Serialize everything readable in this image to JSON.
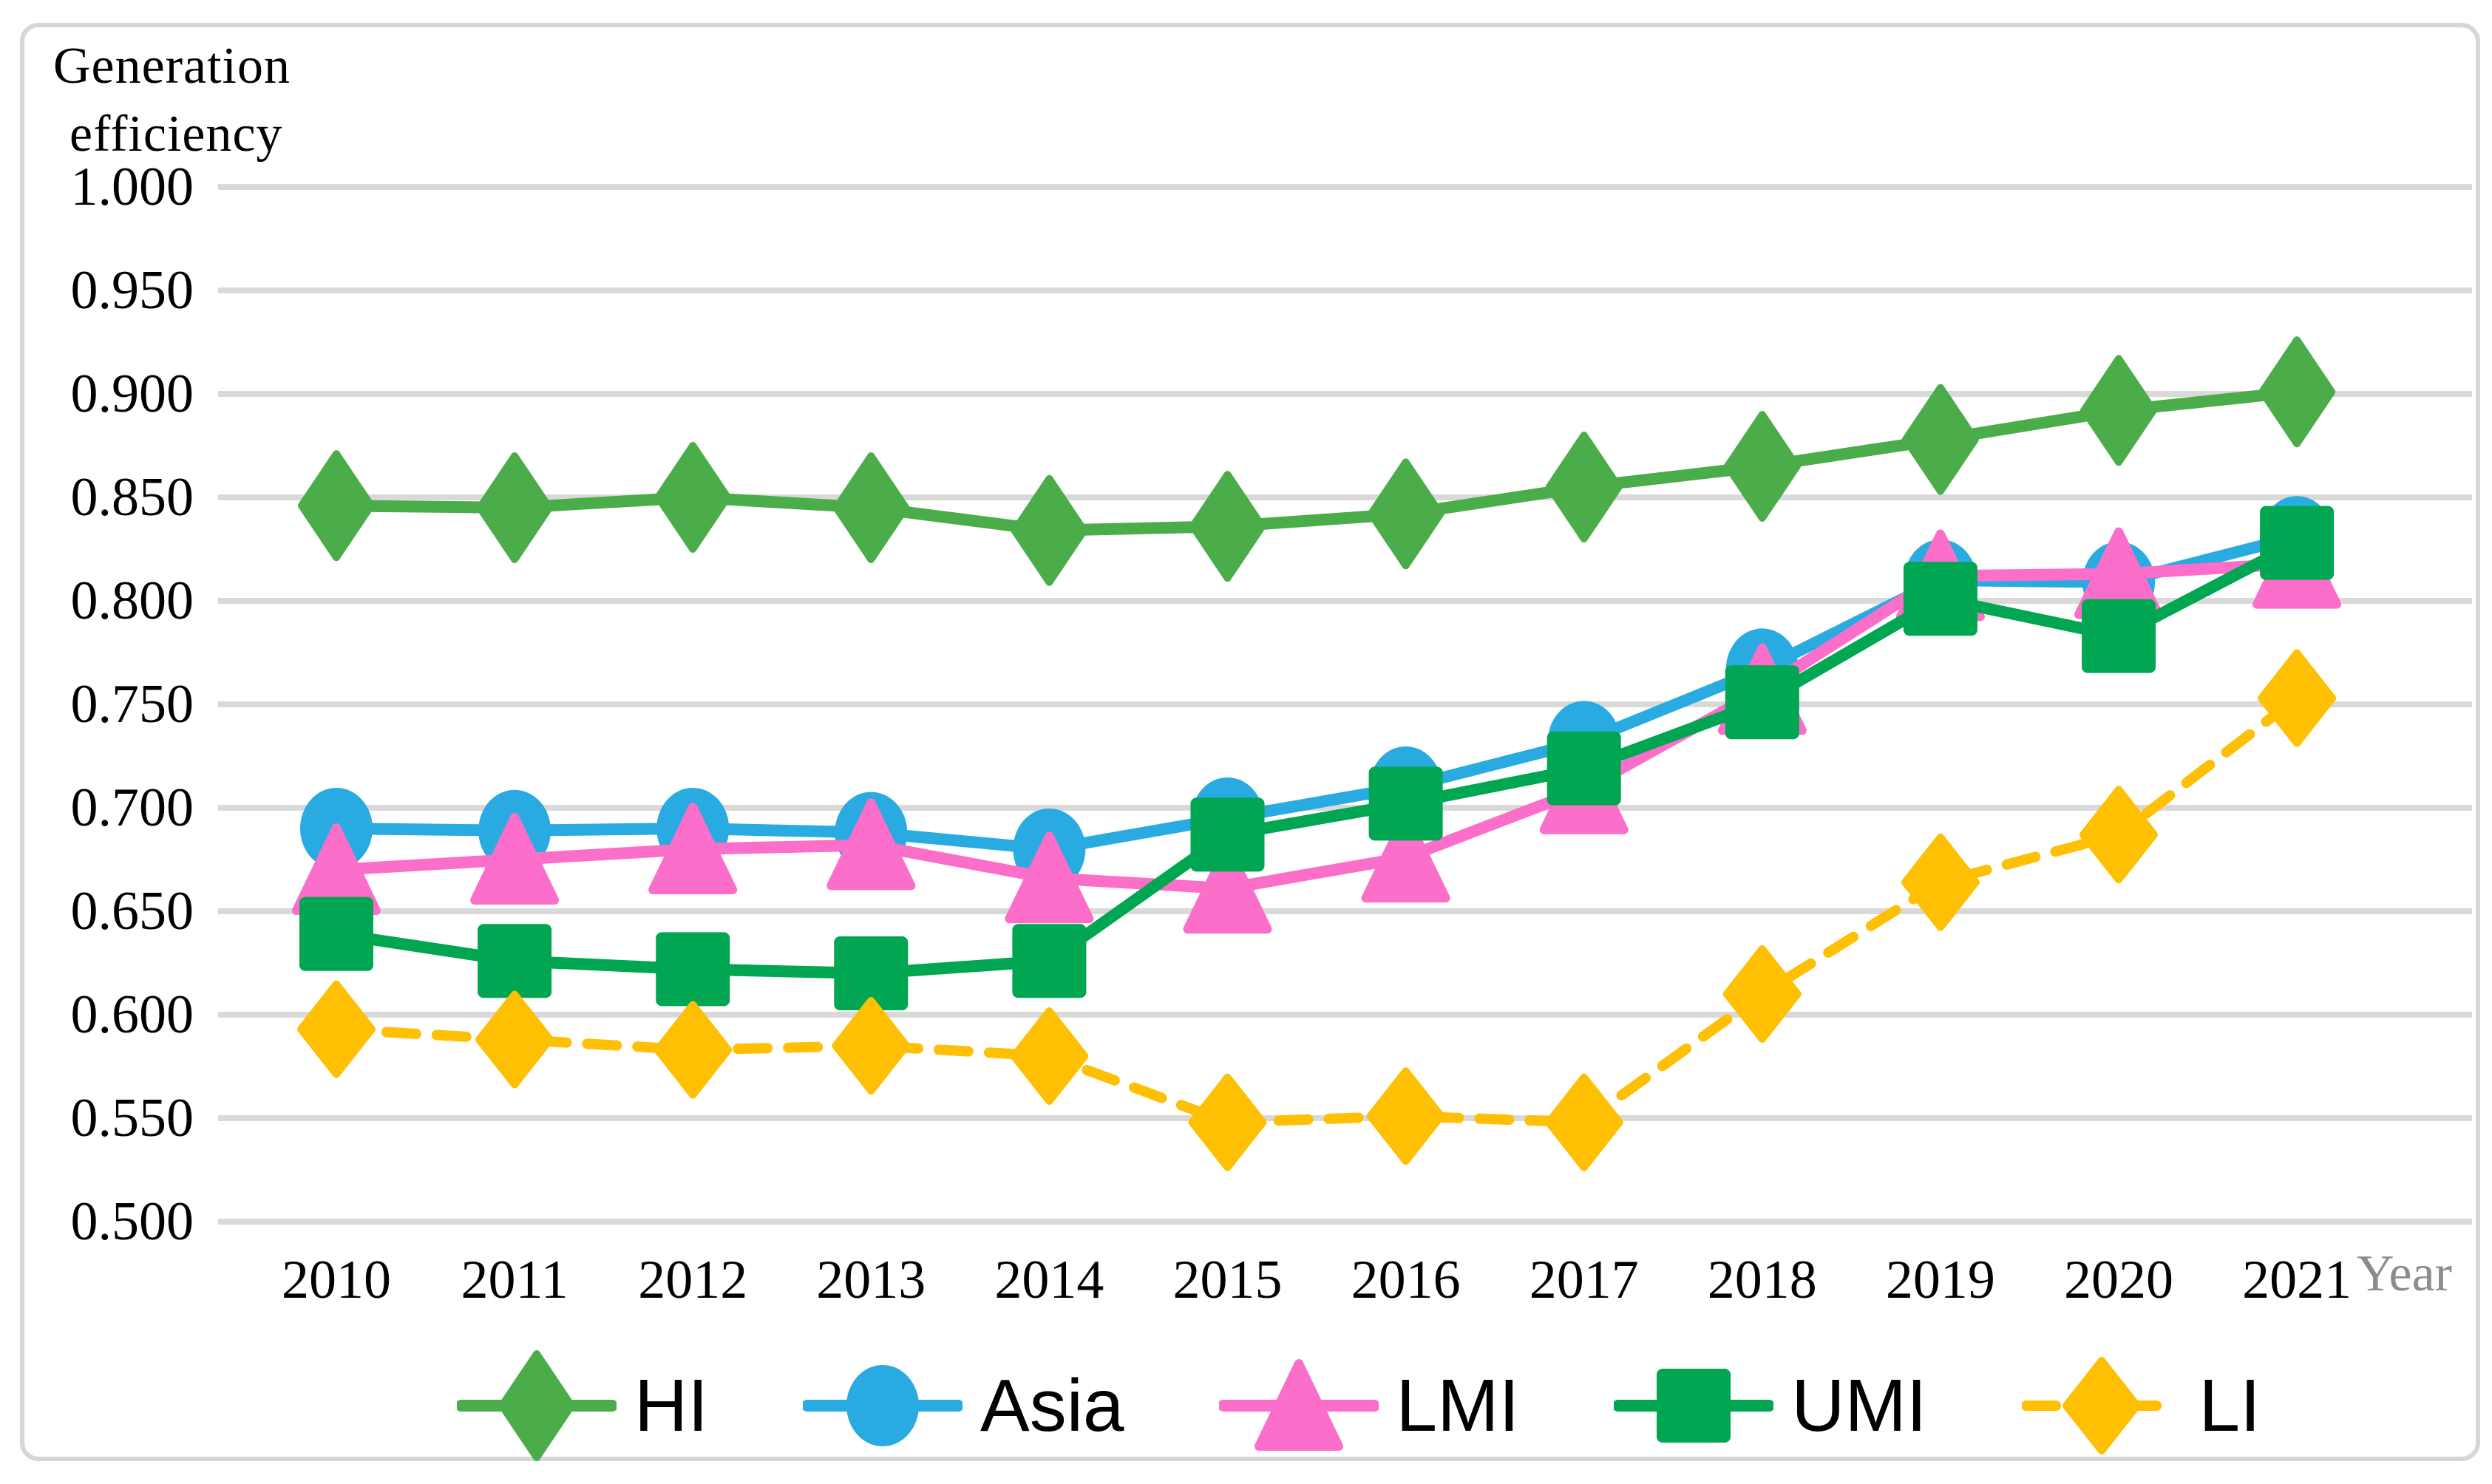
{
  "title": {
    "line1": "Generation",
    "line2": "efficiency"
  },
  "axes": {
    "x_title": "Year",
    "y_ticks": [
      "1.000",
      "0.950",
      "0.900",
      "0.850",
      "0.800",
      "0.750",
      "0.700",
      "0.650",
      "0.600",
      "0.550",
      "0.500"
    ],
    "x_ticks": [
      "2010",
      "2011",
      "2012",
      "2013",
      "2014",
      "2015",
      "2016",
      "2017",
      "2018",
      "2019",
      "2020",
      "2021"
    ]
  },
  "colors": {
    "gridline": "#D9D9D9",
    "frame": "#D6D6D6",
    "axis_text": "#000000",
    "year_label": "#8C8C8C",
    "hi_green": "#4BAD49",
    "asia_blue": "#29ABE2",
    "lmi_pink": "#FB6EC9",
    "umi_green": "#00A651",
    "li_gold": "#FFC003"
  },
  "chart_data": {
    "type": "line",
    "title": "Generation efficiency",
    "xlabel": "Year",
    "ylabel": "Generation efficiency",
    "ylim": [
      0.5,
      1.0
    ],
    "ytick_step": 0.05,
    "grid": "horizontal",
    "legend_position": "bottom",
    "categories": [
      2010,
      2011,
      2012,
      2013,
      2014,
      2015,
      2016,
      2017,
      2018,
      2019,
      2020,
      2021
    ],
    "series": [
      {
        "name": "HI",
        "color": "#4BAD49",
        "marker": "diamond",
        "line": "solid",
        "values": [
          0.846,
          0.845,
          0.85,
          0.845,
          0.834,
          0.836,
          0.842,
          0.855,
          0.865,
          0.878,
          0.892,
          0.901
        ]
      },
      {
        "name": "Asia",
        "color": "#29ABE2",
        "marker": "circle",
        "line": "solid",
        "values": [
          0.69,
          0.689,
          0.69,
          0.688,
          0.68,
          0.695,
          0.71,
          0.732,
          0.767,
          0.81,
          0.809,
          0.831
        ]
      },
      {
        "name": "LMI",
        "color": "#FB6EC9",
        "marker": "triangle",
        "line": "solid",
        "values": [
          0.67,
          0.675,
          0.68,
          0.682,
          0.666,
          0.661,
          0.676,
          0.709,
          0.757,
          0.812,
          0.813,
          0.818
        ]
      },
      {
        "name": "UMI",
        "color": "#00A651",
        "marker": "square",
        "line": "solid",
        "values": [
          0.639,
          0.626,
          0.622,
          0.62,
          0.626,
          0.687,
          0.702,
          0.719,
          0.751,
          0.801,
          0.783,
          0.828
        ]
      },
      {
        "name": "LI",
        "color": "#FFC003",
        "marker": "diamond2",
        "line": "dashed",
        "values": [
          0.593,
          0.588,
          0.583,
          0.585,
          0.58,
          0.548,
          0.551,
          0.548,
          0.61,
          0.664,
          0.687,
          0.753
        ]
      }
    ]
  }
}
